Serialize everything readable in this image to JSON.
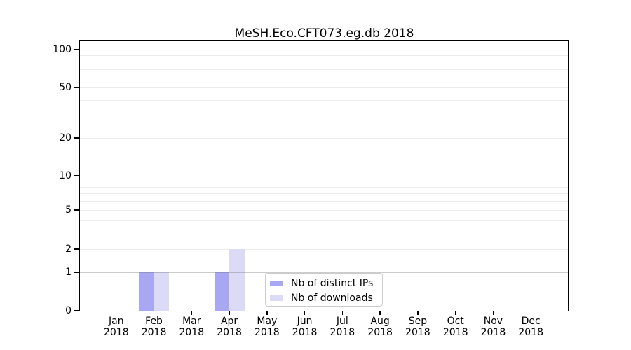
{
  "chart_data": {
    "type": "bar",
    "title": "MeSH.Eco.CFT073.eg.db 2018",
    "categories": [
      "Jan",
      "Feb",
      "Mar",
      "Apr",
      "May",
      "Jun",
      "Jul",
      "Aug",
      "Sep",
      "Oct",
      "Nov",
      "Dec"
    ],
    "category_year": "2018",
    "series": [
      {
        "name": "Nb of distinct IPs",
        "color": "#a7a7f4",
        "values": [
          0,
          1,
          0,
          1,
          0,
          0,
          0,
          0,
          0,
          0,
          0,
          0
        ]
      },
      {
        "name": "Nb of downloads",
        "color": "#dbdbf8",
        "values": [
          0,
          1,
          0,
          2,
          0,
          0,
          0,
          0,
          0,
          0,
          0,
          0
        ]
      }
    ],
    "y_axis": {
      "scale": "log-like",
      "tick_values": [
        0,
        1,
        2,
        5,
        10,
        20,
        50,
        100
      ],
      "tick_labels": [
        "0",
        "1",
        "2",
        "5",
        "10",
        "20",
        "50",
        "100"
      ],
      "light_gridline_values": [
        2,
        5,
        20,
        50
      ],
      "minor_gridline_values": [
        3,
        4,
        6,
        7,
        8,
        9,
        30,
        40,
        60,
        70,
        80,
        90
      ],
      "decade_gridline_values": [
        1,
        10,
        100
      ],
      "ylim": [
        0,
        100
      ]
    },
    "legend": {
      "position": "inside-bottom-center",
      "entries": [
        "Nb of distinct IPs",
        "Nb of downloads"
      ]
    },
    "grid": true,
    "colors": {
      "grid_minor": "#ececec",
      "grid_decade": "#c7c7c7",
      "axis": "#000000",
      "background": "#ffffff"
    }
  }
}
